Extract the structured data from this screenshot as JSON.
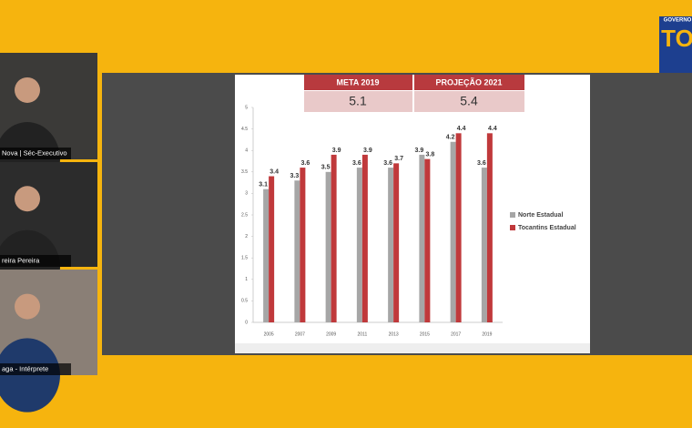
{
  "logo": {
    "top": "GOVERNO",
    "mark": "TO"
  },
  "participants": [
    {
      "label": "Nova | Séc-Executivo"
    },
    {
      "label": "reira Pereira"
    },
    {
      "label": "aga - Intérprete"
    }
  ],
  "meta_table": {
    "headers": [
      "META 2019",
      "PROJEÇÃO 2021"
    ],
    "values": [
      "5.1",
      "5.4"
    ]
  },
  "chart_data": {
    "type": "bar",
    "categories": [
      "2005",
      "2007",
      "2009",
      "2011",
      "2013",
      "2015",
      "2017",
      "2019"
    ],
    "series": [
      {
        "name": "Norte Estadual",
        "color": "#a6a6a6",
        "values": [
          3.1,
          3.3,
          3.5,
          3.6,
          3.6,
          3.9,
          4.2,
          3.6
        ]
      },
      {
        "name": "Tocantins Estadual",
        "color": "#c0393b",
        "values": [
          3.4,
          3.6,
          3.9,
          3.9,
          3.7,
          3.8,
          4.4,
          4.4
        ]
      }
    ],
    "ylim": [
      0,
      5
    ],
    "yticks": [
      0,
      0.5,
      1,
      1.5,
      2,
      2.5,
      3,
      3.5,
      4,
      4.5,
      5
    ],
    "legend": "right"
  }
}
